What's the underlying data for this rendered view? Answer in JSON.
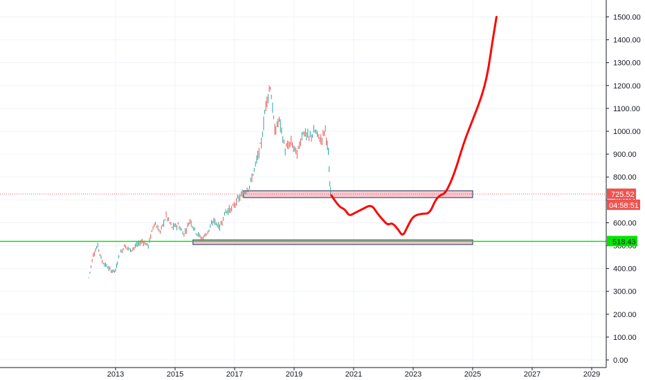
{
  "chart_data": {
    "type": "candlestick",
    "x_axis": {
      "ticks": [
        "2013",
        "2015",
        "2017",
        "2019",
        "2021",
        "2023",
        "2025",
        "2027",
        "2029"
      ]
    },
    "y_axis": {
      "ticks": [
        "1500.00",
        "1400.00",
        "1300.00",
        "1200.00",
        "1100.00",
        "1000.00",
        "900.00",
        "800.00",
        "700.00",
        "600.00",
        "500.00",
        "400.00",
        "300.00",
        "200.00",
        "100.00",
        "0.00"
      ],
      "range": [
        0,
        1500
      ],
      "grid": true
    },
    "price_series": {
      "name": "",
      "color_up": "#26a69a",
      "color_down": "#ef5350",
      "approx_path": [
        [
          2012.1,
          360
        ],
        [
          2012.25,
          460
        ],
        [
          2012.4,
          500
        ],
        [
          2012.55,
          430
        ],
        [
          2012.7,
          410
        ],
        [
          2012.85,
          390
        ],
        [
          2013.0,
          390
        ],
        [
          2013.1,
          450
        ],
        [
          2013.3,
          500
        ],
        [
          2013.5,
          480
        ],
        [
          2013.7,
          500
        ],
        [
          2013.9,
          520
        ],
        [
          2014.1,
          500
        ],
        [
          2014.3,
          600
        ],
        [
          2014.5,
          560
        ],
        [
          2014.7,
          630
        ],
        [
          2014.9,
          580
        ],
        [
          2015.1,
          590
        ],
        [
          2015.3,
          550
        ],
        [
          2015.5,
          610
        ],
        [
          2015.7,
          560
        ],
        [
          2015.9,
          530
        ],
        [
          2016.1,
          560
        ],
        [
          2016.3,
          610
        ],
        [
          2016.5,
          580
        ],
        [
          2016.7,
          650
        ],
        [
          2016.9,
          660
        ],
        [
          2017.1,
          700
        ],
        [
          2017.3,
          730
        ],
        [
          2017.5,
          760
        ],
        [
          2017.7,
          850
        ],
        [
          2017.9,
          950
        ],
        [
          2018.05,
          1120
        ],
        [
          2018.2,
          1200
        ],
        [
          2018.35,
          1000
        ],
        [
          2018.5,
          1050
        ],
        [
          2018.7,
          920
        ],
        [
          2018.9,
          950
        ],
        [
          2019.1,
          900
        ],
        [
          2019.3,
          1000
        ],
        [
          2019.5,
          970
        ],
        [
          2019.7,
          1000
        ],
        [
          2019.9,
          960
        ],
        [
          2020.05,
          1010
        ],
        [
          2020.15,
          900
        ],
        [
          2020.2,
          760
        ],
        [
          2020.25,
          725
        ]
      ],
      "last_value": 725.52
    },
    "annotations": {
      "current_price_label": "725.52",
      "countdown_label": "04:58:51",
      "horizontal_line_label": "518.43",
      "horizontal_line_value": 518.43,
      "horizontal_line_color": "#00e600",
      "zones": [
        {
          "x_start": 2017.3,
          "x_end": 2025.0,
          "y_low": 710,
          "y_high": 740,
          "fill": "#f8c8cf",
          "stroke": "#1e2a5a"
        },
        {
          "x_start": 2015.6,
          "x_end": 2025.0,
          "y_low": 505,
          "y_high": 525,
          "fill": "#f8c8cf",
          "stroke": "#1e2a5a"
        }
      ],
      "projection": {
        "color": "#ff0000",
        "points": [
          [
            2020.25,
            720
          ],
          [
            2020.5,
            670
          ],
          [
            2020.7,
            660
          ],
          [
            2020.85,
            630
          ],
          [
            2021.0,
            640
          ],
          [
            2021.3,
            660
          ],
          [
            2021.6,
            680
          ],
          [
            2021.8,
            640
          ],
          [
            2022.0,
            610
          ],
          [
            2022.15,
            590
          ],
          [
            2022.3,
            600
          ],
          [
            2022.5,
            570
          ],
          [
            2022.65,
            540
          ],
          [
            2022.8,
            580
          ],
          [
            2023.0,
            630
          ],
          [
            2023.3,
            640
          ],
          [
            2023.55,
            640
          ],
          [
            2023.75,
            700
          ],
          [
            2023.9,
            720
          ],
          [
            2024.1,
            730
          ],
          [
            2024.4,
            820
          ],
          [
            2024.7,
            950
          ],
          [
            2025.0,
            1050
          ],
          [
            2025.3,
            1150
          ],
          [
            2025.5,
            1250
          ],
          [
            2025.65,
            1380
          ],
          [
            2025.8,
            1500
          ]
        ]
      }
    },
    "price_axis_color": "#131722",
    "grid_color": "#f0f3fa",
    "price_tag_color": "#ef5350"
  }
}
